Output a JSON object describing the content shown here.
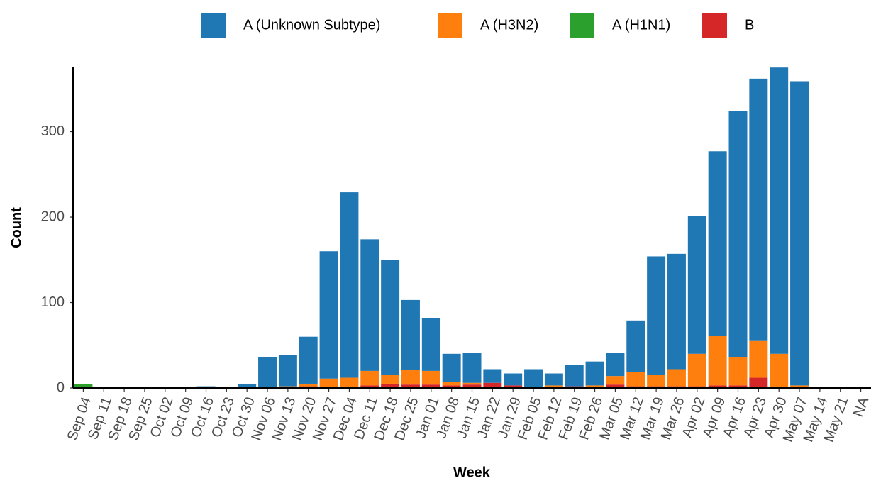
{
  "chart_data": {
    "type": "stacked_bar",
    "x_label": "Week",
    "y_label": "Count",
    "categories": [
      "Sep 04",
      "Sep 11",
      "Sep 18",
      "Sep 25",
      "Oct 02",
      "Oct 09",
      "Oct 16",
      "Oct 23",
      "Oct 30",
      "Nov 06",
      "Nov 13",
      "Nov 20",
      "Nov 27",
      "Dec 04",
      "Dec 11",
      "Dec 18",
      "Dec 25",
      "Jan 01",
      "Jan 08",
      "Jan 15",
      "Jan 22",
      "Jan 29",
      "Feb 05",
      "Feb 12",
      "Feb 19",
      "Feb 26",
      "Mar 05",
      "Mar 12",
      "Mar 19",
      "Mar 26",
      "Apr 02",
      "Apr 09",
      "Apr 16",
      "Apr 23",
      "Apr 30",
      "May 07",
      "May 14",
      "May 21",
      "NA"
    ],
    "series": [
      {
        "name": "A (Unknown Subtype)",
        "color": "#1f77b4",
        "values": [
          0,
          0,
          0,
          0,
          1,
          1,
          2,
          0,
          4,
          35,
          37,
          55,
          149,
          217,
          154,
          135,
          82,
          62,
          33,
          35,
          16,
          14,
          22,
          14,
          25,
          28,
          27,
          60,
          139,
          135,
          161,
          216,
          288,
          307,
          335,
          356,
          0,
          0,
          0
        ]
      },
      {
        "name": "A (H3N2)",
        "color": "#ff7f0e",
        "values": [
          0,
          0,
          1,
          0,
          0,
          0,
          0,
          0,
          1,
          1,
          2,
          3,
          10,
          11,
          17,
          10,
          17,
          16,
          4,
          2,
          0,
          0,
          0,
          3,
          0,
          3,
          10,
          17,
          13,
          20,
          38,
          58,
          33,
          43,
          40,
          3,
          0,
          0,
          0
        ]
      },
      {
        "name": "A (H1N1)",
        "color": "#2ca02c",
        "values": [
          5,
          0,
          0,
          0,
          0,
          0,
          0,
          0,
          0,
          0,
          0,
          0,
          0,
          0,
          0,
          0,
          0,
          0,
          0,
          0,
          0,
          0,
          0,
          0,
          0,
          0,
          0,
          0,
          0,
          0,
          0,
          0,
          0,
          0,
          0,
          0,
          0,
          0,
          0
        ]
      },
      {
        "name": "B",
        "color": "#d62728",
        "values": [
          0,
          1,
          0,
          0,
          0,
          0,
          0,
          0,
          0,
          0,
          0,
          2,
          1,
          1,
          3,
          5,
          4,
          4,
          3,
          4,
          6,
          3,
          0,
          0,
          2,
          0,
          4,
          2,
          2,
          2,
          2,
          3,
          3,
          12,
          0,
          0,
          0,
          0,
          0
        ]
      }
    ],
    "ylim": [
      0,
      376
    ],
    "yticks": [
      0,
      100,
      200,
      300
    ],
    "grid": false,
    "legend": "top"
  }
}
